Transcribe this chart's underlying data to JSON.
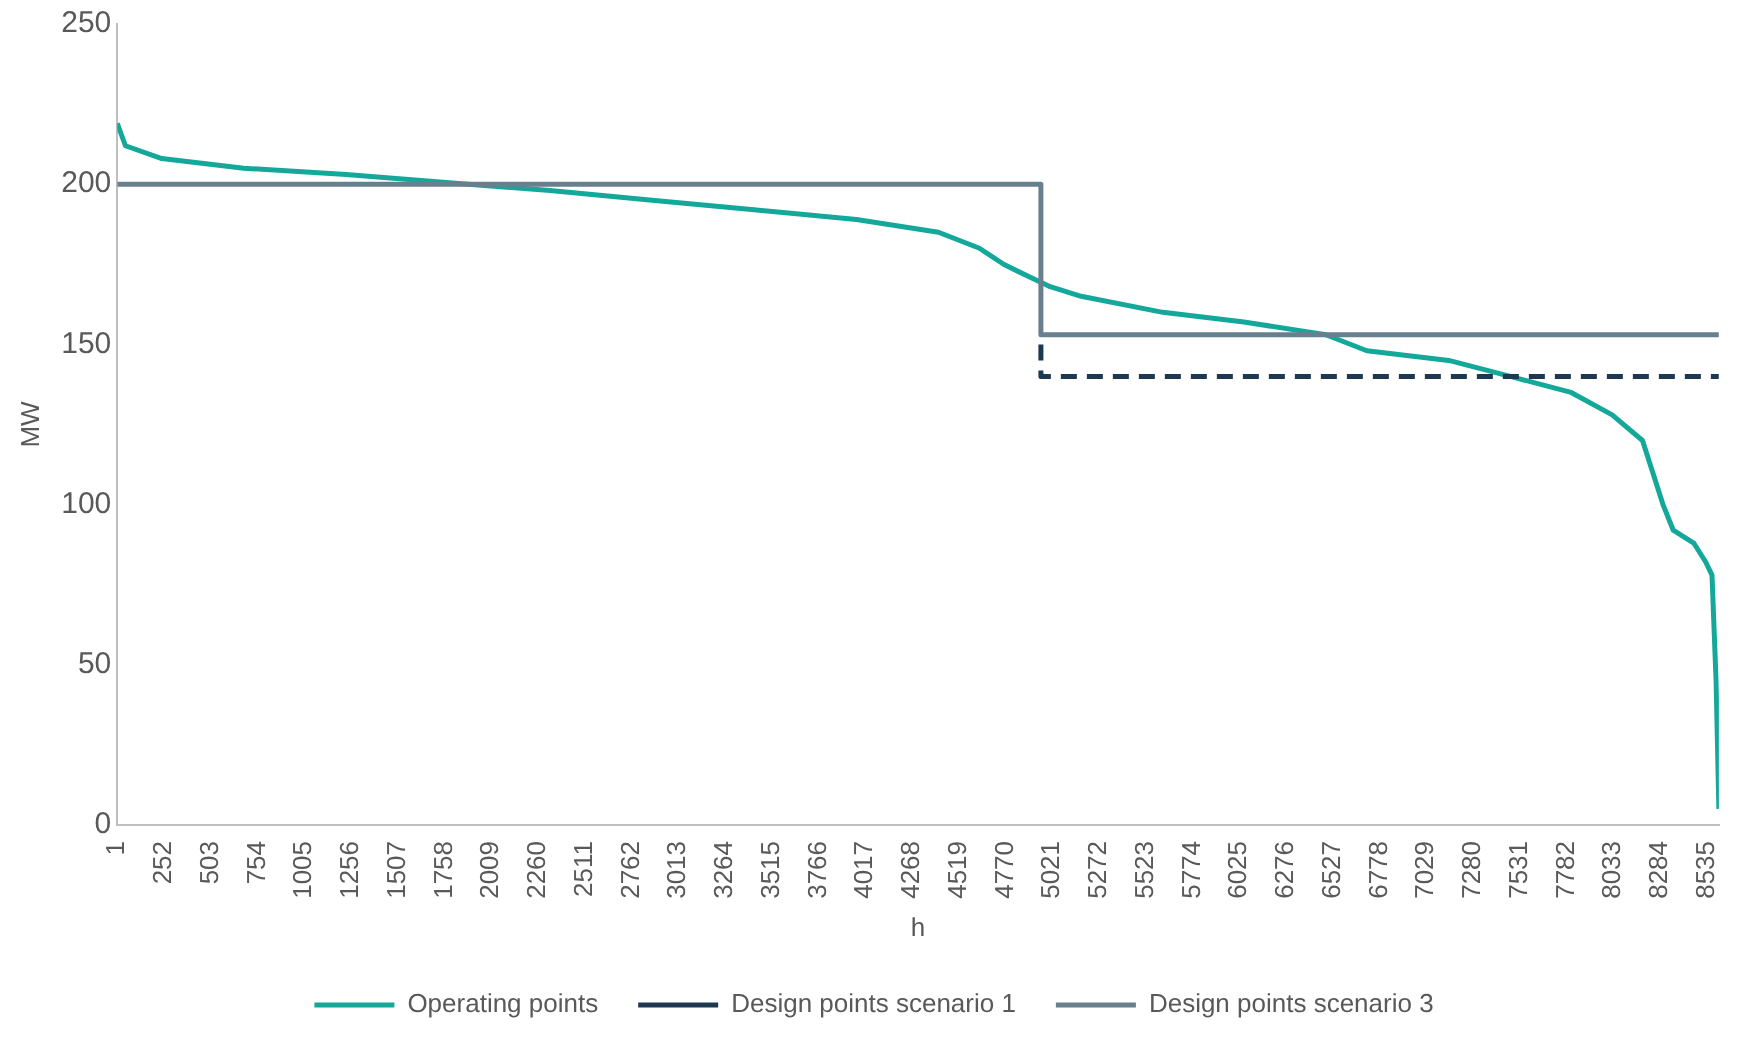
{
  "chart_data": {
    "type": "line",
    "xlabel": "h",
    "ylabel": "MW",
    "xlim": [
      1,
      8600
    ],
    "xticks": [
      1,
      252,
      503,
      754,
      1005,
      1256,
      1507,
      1758,
      2009,
      2260,
      2511,
      2762,
      3013,
      3264,
      3515,
      3766,
      4017,
      4268,
      4519,
      4770,
      5021,
      5272,
      5523,
      5774,
      6025,
      6276,
      6527,
      6778,
      7029,
      7280,
      7531,
      7782,
      8033,
      8284,
      8535
    ],
    "ylim": [
      0,
      250
    ],
    "yticks": [
      0,
      50,
      100,
      150,
      200,
      250
    ],
    "grid": false,
    "legend": "bottom",
    "marker": "none",
    "series": [
      {
        "name": "Operating points",
        "color": "#14a89b",
        "line_style": "solid",
        "x": [
          1,
          45,
          240,
          680,
          1230,
          1885,
          2325,
          2873,
          3420,
          3970,
          4410,
          4630,
          4760,
          4900,
          5010,
          5176,
          5615,
          6050,
          6490,
          6710,
          7150,
          7480,
          7807,
          8027,
          8190,
          8245,
          8300,
          8355,
          8465,
          8530,
          8563,
          8585,
          8600
        ],
        "values": [
          219,
          212,
          208,
          205,
          203,
          200,
          198,
          195,
          192,
          189,
          185,
          180,
          175,
          171,
          168,
          165,
          160,
          157,
          153,
          148,
          145,
          140,
          135,
          128,
          120,
          110,
          100,
          92,
          88,
          82,
          78,
          45,
          5
        ]
      },
      {
        "name": "Design points scenario 1",
        "color": "#1d3850",
        "line_style": "dashed",
        "x": [
          4960,
          4960,
          8600
        ],
        "values": [
          150,
          140,
          140
        ]
      },
      {
        "name": "Design points scenario 3",
        "color": "#687f8e",
        "line_style": "solid",
        "x": [
          1,
          4960,
          4960,
          8600
        ],
        "values": [
          200,
          200,
          153,
          153
        ]
      }
    ]
  }
}
